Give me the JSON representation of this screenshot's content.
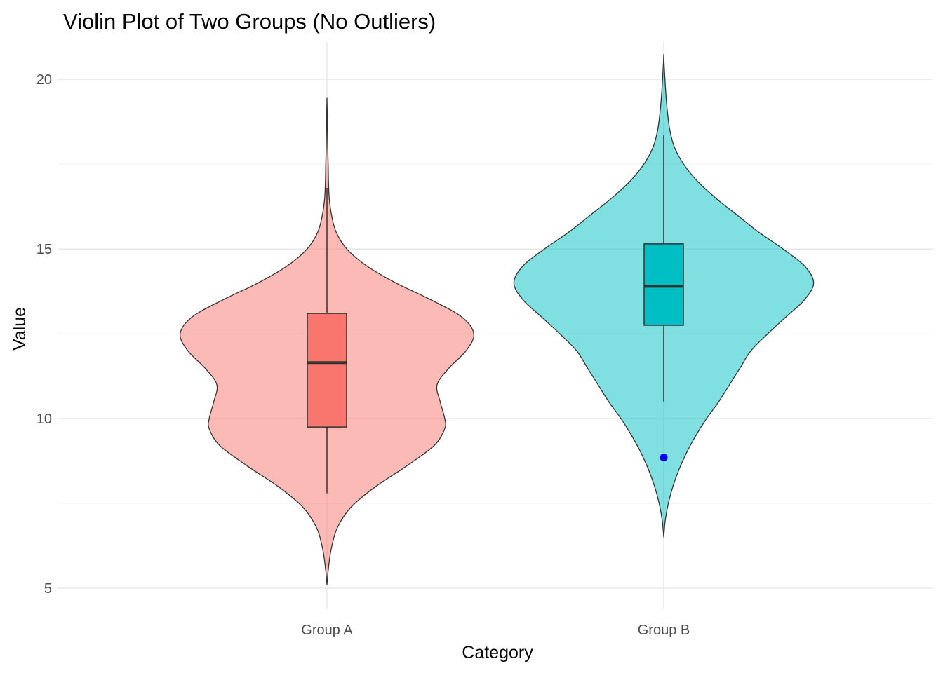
{
  "chart_data": {
    "type": "violin",
    "title": "Violin Plot of Two Groups (No Outliers)",
    "xlabel": "Category",
    "ylabel": "Value",
    "ylim": [
      4.4,
      21.1
    ],
    "yticks": [
      5,
      10,
      15,
      20
    ],
    "ytick_labels": [
      "5",
      "10",
      "15",
      "20"
    ],
    "grid": true,
    "legend": "none",
    "categories": [
      "Group A",
      "Group B"
    ],
    "series": [
      {
        "category": "Group A",
        "violin_color": "#F8766D",
        "box_color": "#F8766D",
        "ymin": 5.1,
        "ymax": 19.4,
        "density": [
          [
            5.1,
            0.0
          ],
          [
            5.6,
            0.01
          ],
          [
            6.2,
            0.03
          ],
          [
            6.8,
            0.07
          ],
          [
            7.4,
            0.16
          ],
          [
            8.0,
            0.32
          ],
          [
            8.6,
            0.52
          ],
          [
            9.2,
            0.7
          ],
          [
            9.7,
            0.77
          ],
          [
            10.0,
            0.77
          ],
          [
            10.5,
            0.74
          ],
          [
            11.0,
            0.72
          ],
          [
            11.5,
            0.8
          ],
          [
            12.0,
            0.91
          ],
          [
            12.5,
            0.96
          ],
          [
            13.0,
            0.88
          ],
          [
            13.5,
            0.68
          ],
          [
            14.0,
            0.45
          ],
          [
            14.5,
            0.26
          ],
          [
            15.0,
            0.13
          ],
          [
            15.5,
            0.06
          ],
          [
            16.0,
            0.03
          ],
          [
            16.5,
            0.015
          ],
          [
            17.0,
            0.01
          ],
          [
            17.5,
            0.008
          ],
          [
            18.0,
            0.005
          ],
          [
            18.5,
            0.003
          ],
          [
            19.0,
            0.002
          ],
          [
            19.4,
            0.0
          ]
        ],
        "box": {
          "whisker_low": 7.8,
          "q1": 9.75,
          "median": 11.65,
          "q3": 13.1,
          "whisker_high": 16.8
        },
        "points": []
      },
      {
        "category": "Group B",
        "violin_color": "#00BFC4",
        "box_color": "#00BFC4",
        "ymin": 6.5,
        "ymax": 20.7,
        "density": [
          [
            6.5,
            0.0
          ],
          [
            7.0,
            0.01
          ],
          [
            7.5,
            0.03
          ],
          [
            8.0,
            0.06
          ],
          [
            8.5,
            0.1
          ],
          [
            9.0,
            0.15
          ],
          [
            9.5,
            0.21
          ],
          [
            10.0,
            0.28
          ],
          [
            10.5,
            0.36
          ],
          [
            11.0,
            0.43
          ],
          [
            11.5,
            0.5
          ],
          [
            12.0,
            0.57
          ],
          [
            12.5,
            0.68
          ],
          [
            13.0,
            0.8
          ],
          [
            13.5,
            0.92
          ],
          [
            14.0,
            0.98
          ],
          [
            14.5,
            0.92
          ],
          [
            15.0,
            0.78
          ],
          [
            15.5,
            0.62
          ],
          [
            16.0,
            0.48
          ],
          [
            16.5,
            0.34
          ],
          [
            17.0,
            0.22
          ],
          [
            17.5,
            0.13
          ],
          [
            18.0,
            0.07
          ],
          [
            18.5,
            0.04
          ],
          [
            19.0,
            0.025
          ],
          [
            19.5,
            0.015
          ],
          [
            20.0,
            0.008
          ],
          [
            20.4,
            0.003
          ],
          [
            20.7,
            0.0
          ]
        ],
        "box": {
          "whisker_low": 10.5,
          "q1": 12.75,
          "median": 13.9,
          "q3": 15.15,
          "whisker_high": 18.35
        },
        "points": [
          {
            "y": 8.85,
            "color": "#0000FF"
          }
        ]
      }
    ]
  }
}
